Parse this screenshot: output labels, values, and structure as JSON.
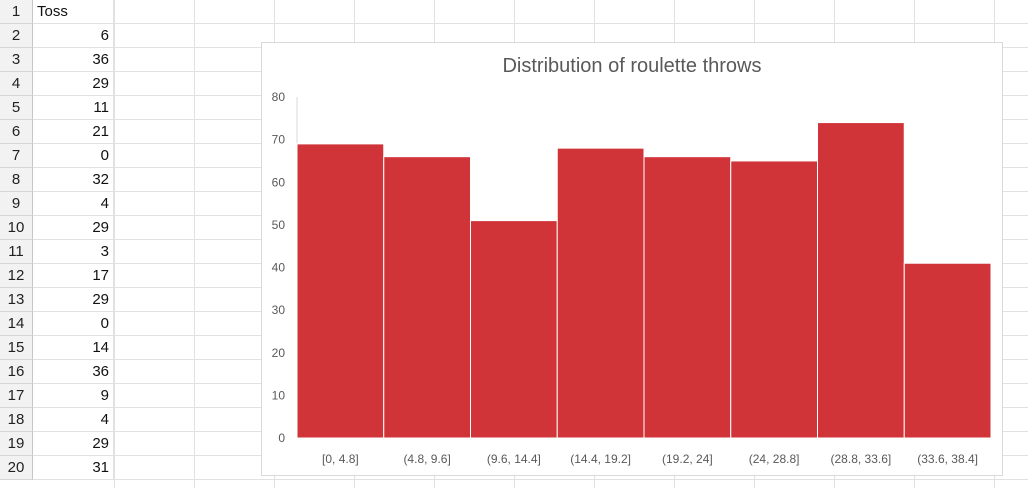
{
  "sheet": {
    "row_numbers": [
      "1",
      "2",
      "3",
      "4",
      "5",
      "6",
      "7",
      "8",
      "9",
      "10",
      "11",
      "12",
      "13",
      "14",
      "15",
      "16",
      "17",
      "18",
      "19",
      "20"
    ],
    "header": "Toss",
    "values": [
      "6",
      "36",
      "29",
      "11",
      "21",
      "0",
      "32",
      "4",
      "29",
      "3",
      "17",
      "29",
      "0",
      "14",
      "36",
      "9",
      "4",
      "29",
      "31"
    ]
  },
  "chart_data": {
    "type": "bar",
    "title": "Distribution of roulette throws",
    "categories": [
      "[0, 4.8]",
      "(4.8, 9.6]",
      "(9.6, 14.4]",
      "(14.4, 19.2]",
      "(19.2, 24]",
      "(24, 28.8]",
      "(28.8, 33.6]",
      "(33.6, 38.4]"
    ],
    "values": [
      69,
      66,
      51,
      68,
      66,
      65,
      74,
      41
    ],
    "ylim": [
      0,
      80
    ],
    "yticks": [
      0,
      10,
      20,
      30,
      40,
      50,
      60,
      70,
      80
    ],
    "bar_color": "#d13438",
    "grid": false
  }
}
